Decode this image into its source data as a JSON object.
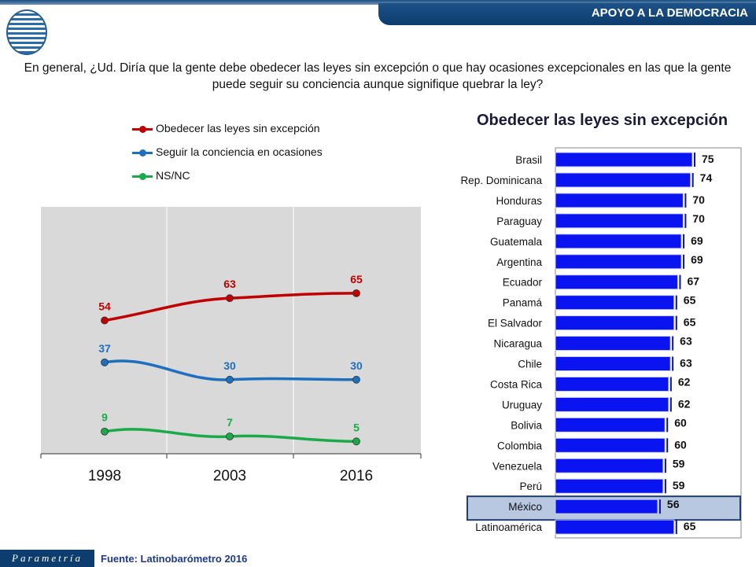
{
  "header": {
    "section": "APOYO A LA DEMOCRACIA"
  },
  "question": "En general, ¿Ud. Diría que la gente debe obedecer las leyes sin excepción o que hay ocasiones excepcionales en las que la gente puede seguir su conciencia aunque signifique quebrar la ley?",
  "footer": {
    "logo_text": "Parametría",
    "source": "Fuente: Latinobarómetro 2016"
  },
  "chart_data": [
    {
      "type": "line",
      "categories": [
        "1998",
        "2003",
        "2016"
      ],
      "ylim": [
        0,
        100
      ],
      "grid": "vertical",
      "legend": "top",
      "series": [
        {
          "name": "Obedecer las leyes sin excepción",
          "values": [
            54,
            63,
            65
          ],
          "color": "#c00000"
        },
        {
          "name": "Seguir la conciencia en ocasiones",
          "values": [
            37,
            30,
            30
          ],
          "color": "#1f6fbf"
        },
        {
          "name": "NS/NC",
          "values": [
            9,
            7,
            5
          ],
          "color": "#1aaa4a"
        }
      ]
    },
    {
      "type": "bar",
      "orientation": "horizontal",
      "title": "Obedecer las leyes sin excepción",
      "color": "#0a14f0",
      "highlight": "México",
      "categories": [
        "Brasil",
        "Rep. Dominicana",
        "Honduras",
        "Paraguay",
        "Guatemala",
        "Argentina",
        "Ecuador",
        "Panamá",
        "El Salvador",
        "Nicaragua",
        "Chile",
        "Costa Rica",
        "Uruguay",
        "Bolivia",
        "Colombia",
        "Venezuela",
        "Perú",
        "México",
        "Latinoamérica"
      ],
      "values": [
        75,
        74,
        70,
        70,
        69,
        69,
        67,
        65,
        65,
        63,
        63,
        62,
        62,
        60,
        60,
        59,
        59,
        56,
        65
      ]
    }
  ]
}
